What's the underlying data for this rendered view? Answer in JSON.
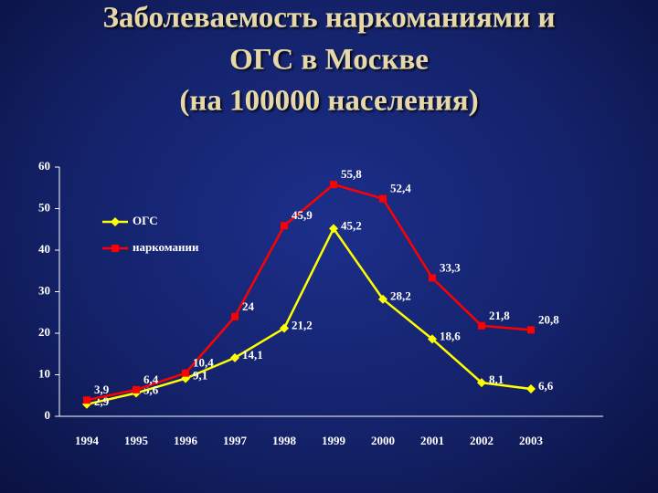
{
  "chart_data": {
    "type": "line",
    "title": [
      "Заболеваемость наркоманиями и",
      "ОГС в Москве",
      "(на 100000 населения)"
    ],
    "categories": [
      "1994",
      "1995",
      "1996",
      "1997",
      "1998",
      "1999",
      "2000",
      "2001",
      "2002",
      "2003"
    ],
    "series": [
      {
        "name": "ОГС",
        "color": "#ffff00",
        "marker": "diamond",
        "values": [
          2.9,
          5.6,
          9.1,
          14.1,
          21.2,
          45.2,
          28.2,
          18.6,
          8.1,
          6.6
        ],
        "value_labels": [
          "2,9",
          "5,6",
          "9,1",
          "14,1",
          "21,2",
          "45,2",
          "28,2",
          "18,6",
          "8,1",
          "6,6"
        ]
      },
      {
        "name": "наркомании",
        "color": "#ff0000",
        "marker": "square",
        "values": [
          3.9,
          6.4,
          10.4,
          24,
          45.9,
          55.8,
          52.4,
          33.3,
          21.8,
          20.8
        ],
        "value_labels": [
          "3,9",
          "6,4",
          "10,4",
          "24",
          "45,9",
          "55,8",
          "52,4",
          "33,3",
          "21,8",
          "20,8"
        ]
      }
    ],
    "ylim": [
      0,
      60
    ],
    "yticks": [
      0,
      10,
      20,
      30,
      40,
      50,
      60
    ],
    "grid": false,
    "legend": "upper-left"
  }
}
